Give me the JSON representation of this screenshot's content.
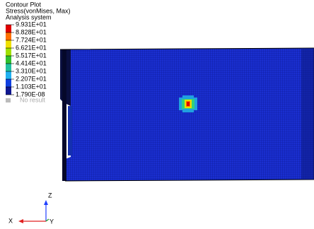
{
  "legend": {
    "title": [
      "Contour Plot",
      "Stress(vonMises, Max)",
      "Analysis system"
    ],
    "labels": [
      "9.931E+01",
      "8.828E+01",
      "7.724E+01",
      "6.621E+01",
      "5.517E+01",
      "4.414E+01",
      "3.310E+01",
      "2.207E+01",
      "1.103E+01",
      "1.790E-08"
    ],
    "no_result": "No result"
  },
  "triad": {
    "x": "X",
    "y": "Y",
    "z": "Z"
  }
}
